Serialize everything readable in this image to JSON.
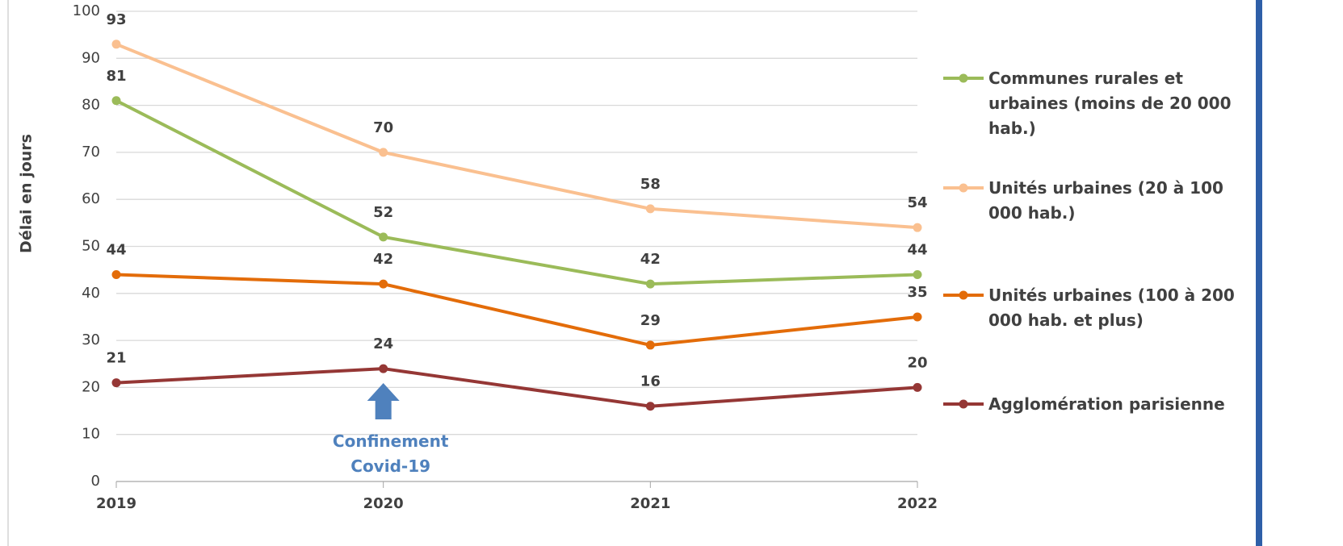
{
  "chart_data": {
    "type": "line",
    "y_label": "Délai en jours",
    "x": [
      "2019",
      "2020",
      "2021",
      "2022"
    ],
    "series": [
      {
        "name": "Communes rurales et urbaines (moins de 20 000 hab.)",
        "color": "#9bbb59",
        "values": [
          81,
          52,
          42,
          44
        ]
      },
      {
        "name": "Unités urbaines (20 à 100 000 hab.)",
        "color": "#fac090",
        "values": [
          93,
          70,
          58,
          54
        ]
      },
      {
        "name": "Unités urbaines (100 à 200 000 hab. et plus)",
        "color": "#e36c09",
        "values": [
          44,
          42,
          29,
          35
        ]
      },
      {
        "name": "Agglomération parisienne",
        "color": "#953735",
        "values": [
          21,
          24,
          16,
          20
        ]
      }
    ],
    "ylim": [
      0,
      100
    ],
    "yticks": [
      0,
      10,
      20,
      30,
      40,
      50,
      60,
      70,
      80,
      90,
      100
    ],
    "grid": true,
    "annotation": {
      "text": "Confinement Covid-19",
      "x": "2020",
      "color": "#4f81bd"
    }
  }
}
